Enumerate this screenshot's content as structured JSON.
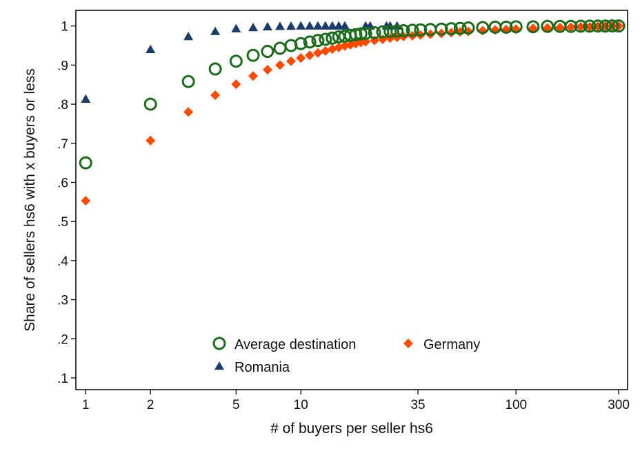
{
  "chart_data": {
    "type": "scatter",
    "title": "",
    "xlabel": "# of buyers per seller hs6",
    "ylabel": "Share of sellers hs6 with x buyers or less",
    "x_scale": "log",
    "xlim": [
      0.9,
      330
    ],
    "ylim": [
      0.07,
      1.04
    ],
    "x_ticks": [
      1,
      2,
      5,
      10,
      35,
      100,
      300
    ],
    "x_tick_labels": [
      "1",
      "2",
      "5",
      "10",
      "35",
      "100",
      "300"
    ],
    "y_ticks": [
      0.1,
      0.2,
      0.3,
      0.4,
      0.5,
      0.6,
      0.7,
      0.8,
      0.9,
      1
    ],
    "y_tick_labels": [
      ".1",
      ".2",
      ".3",
      ".4",
      ".5",
      ".6",
      ".7",
      ".8",
      ".9",
      "1"
    ],
    "grid": false,
    "legend_position": "bottom-center",
    "series": [
      {
        "name": "Average destination",
        "marker": "hollow-circle",
        "color": "#1a6b1a",
        "points": [
          [
            1,
            0.65
          ],
          [
            2,
            0.8
          ],
          [
            3,
            0.858
          ],
          [
            4,
            0.89
          ],
          [
            5,
            0.91
          ],
          [
            6,
            0.925
          ],
          [
            7,
            0.935
          ],
          [
            8,
            0.943
          ],
          [
            9,
            0.95
          ],
          [
            10,
            0.955
          ],
          [
            11,
            0.959
          ],
          [
            12,
            0.963
          ],
          [
            13,
            0.966
          ],
          [
            14,
            0.969
          ],
          [
            15,
            0.972
          ],
          [
            16,
            0.974
          ],
          [
            17,
            0.976
          ],
          [
            18,
            0.978
          ],
          [
            19,
            0.98
          ],
          [
            20,
            0.981
          ],
          [
            22,
            0.983
          ],
          [
            24,
            0.985
          ],
          [
            26,
            0.986
          ],
          [
            28,
            0.987
          ],
          [
            30,
            0.988
          ],
          [
            33,
            0.989
          ],
          [
            36,
            0.99
          ],
          [
            40,
            0.991
          ],
          [
            45,
            0.992
          ],
          [
            50,
            0.993
          ],
          [
            55,
            0.994
          ],
          [
            60,
            0.995
          ],
          [
            70,
            0.996
          ],
          [
            80,
            0.997
          ],
          [
            90,
            0.997
          ],
          [
            100,
            0.998
          ],
          [
            120,
            0.998
          ],
          [
            140,
            0.999
          ],
          [
            160,
            0.999
          ],
          [
            180,
            0.999
          ],
          [
            200,
            0.9995
          ],
          [
            220,
            0.9997
          ],
          [
            240,
            0.9998
          ],
          [
            260,
            0.9999
          ],
          [
            280,
            1.0
          ],
          [
            300,
            1.0
          ]
        ]
      },
      {
        "name": "Germany",
        "marker": "diamond",
        "color": "#ff4a00",
        "points": [
          [
            1,
            0.553
          ],
          [
            2,
            0.707
          ],
          [
            3,
            0.78
          ],
          [
            4,
            0.823
          ],
          [
            5,
            0.851
          ],
          [
            6,
            0.872
          ],
          [
            7,
            0.888
          ],
          [
            8,
            0.9
          ],
          [
            9,
            0.91
          ],
          [
            10,
            0.918
          ],
          [
            11,
            0.925
          ],
          [
            12,
            0.931
          ],
          [
            13,
            0.936
          ],
          [
            14,
            0.941
          ],
          [
            15,
            0.945
          ],
          [
            16,
            0.949
          ],
          [
            17,
            0.952
          ],
          [
            18,
            0.955
          ],
          [
            19,
            0.958
          ],
          [
            20,
            0.96
          ],
          [
            22,
            0.963
          ],
          [
            24,
            0.966
          ],
          [
            26,
            0.969
          ],
          [
            28,
            0.971
          ],
          [
            30,
            0.973
          ],
          [
            33,
            0.975
          ],
          [
            36,
            0.977
          ],
          [
            40,
            0.979
          ],
          [
            45,
            0.981
          ],
          [
            50,
            0.983
          ],
          [
            55,
            0.985
          ],
          [
            60,
            0.986
          ],
          [
            70,
            0.988
          ],
          [
            80,
            0.99
          ],
          [
            90,
            0.991
          ],
          [
            100,
            0.992
          ],
          [
            120,
            0.994
          ],
          [
            140,
            0.995
          ],
          [
            160,
            0.996
          ],
          [
            180,
            0.997
          ],
          [
            200,
            0.998
          ],
          [
            220,
            0.998
          ],
          [
            240,
            0.999
          ],
          [
            260,
            0.9995
          ],
          [
            280,
            1.0
          ],
          [
            300,
            1.0
          ]
        ]
      },
      {
        "name": "Romania",
        "marker": "triangle",
        "color": "#1a3d6b",
        "points": [
          [
            1,
            0.813
          ],
          [
            2,
            0.94
          ],
          [
            3,
            0.973
          ],
          [
            4,
            0.986
          ],
          [
            5,
            0.993
          ],
          [
            6,
            0.996
          ],
          [
            7,
            0.998
          ],
          [
            8,
            0.999
          ],
          [
            9,
            0.9995
          ],
          [
            10,
            1.0
          ],
          [
            11,
            1.0
          ],
          [
            12,
            1.0
          ],
          [
            13,
            1.0
          ],
          [
            14,
            1.0
          ],
          [
            15,
            1.0
          ],
          [
            16,
            1.0
          ],
          [
            20,
            1.0
          ],
          [
            21,
            1.0
          ],
          [
            25,
            1.0
          ],
          [
            26,
            1.0
          ],
          [
            28,
            1.0
          ]
        ]
      }
    ]
  }
}
